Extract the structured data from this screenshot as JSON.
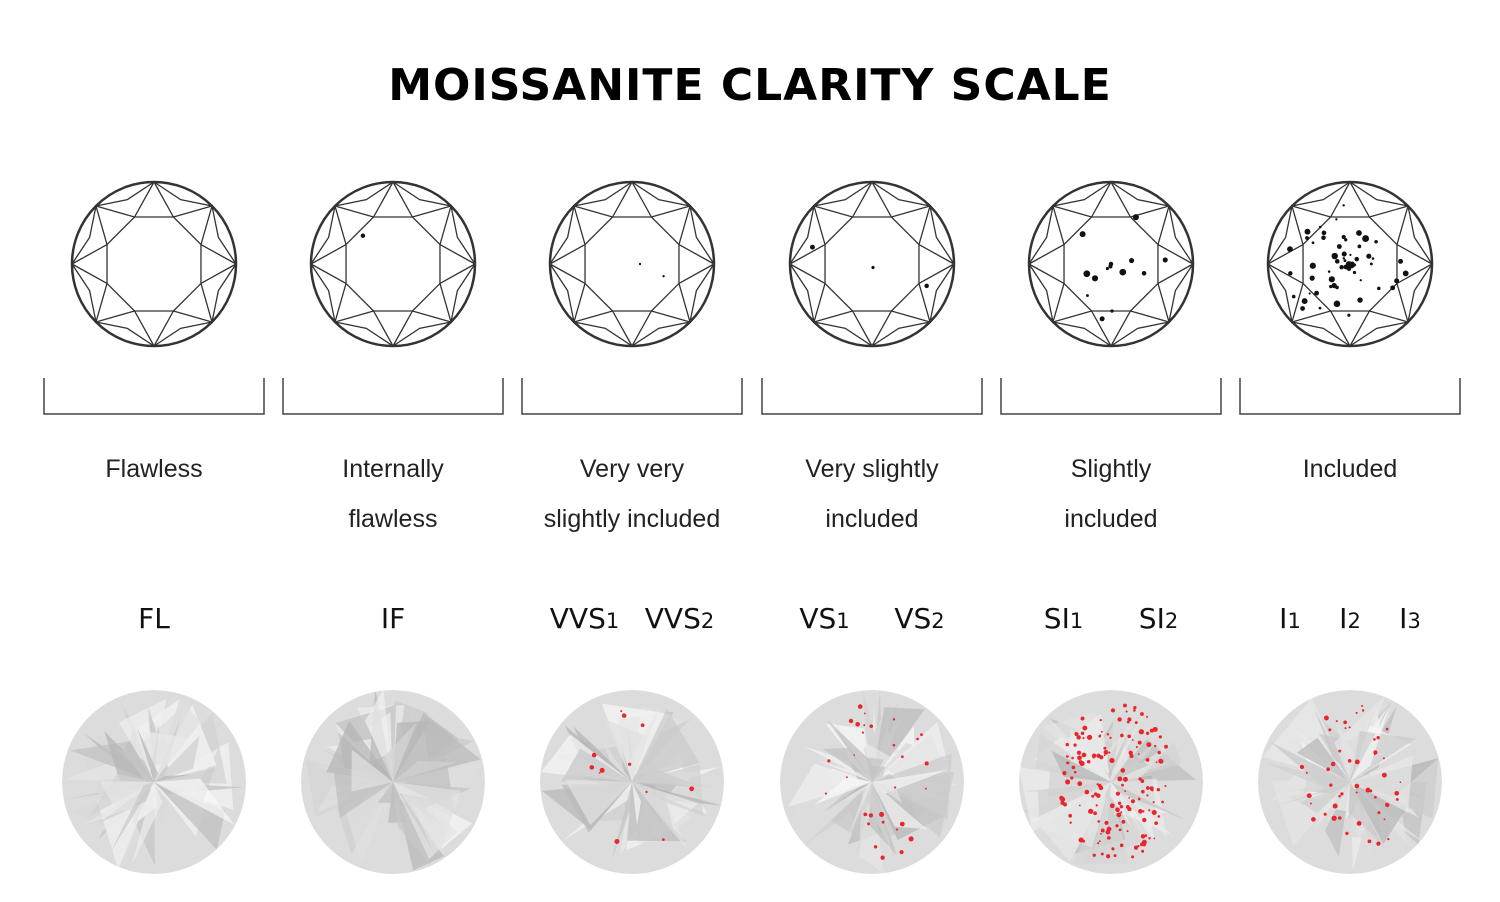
{
  "header": {
    "title": "MOISSANITE CLARITY SCALE"
  },
  "columns": [
    {
      "description": [
        "Flawless"
      ],
      "grades": [
        {
          "code": "FL"
        }
      ]
    },
    {
      "description": [
        "Internally",
        "flawless"
      ],
      "grades": [
        {
          "code": "IF"
        }
      ]
    },
    {
      "description": [
        "Very very",
        "slightly included"
      ],
      "grades": [
        {
          "code": "VVS",
          "sub": "1"
        },
        {
          "code": "VVS",
          "sub": "2"
        }
      ]
    },
    {
      "description": [
        "Very slightly",
        "included"
      ],
      "grades": [
        {
          "code": "VS",
          "sub": "1"
        },
        {
          "code": "VS",
          "sub": "2"
        }
      ]
    },
    {
      "description": [
        "Slightly",
        "included"
      ],
      "grades": [
        {
          "code": "SI",
          "sub": "1"
        },
        {
          "code": "SI",
          "sub": "2"
        }
      ]
    },
    {
      "description": [
        "Included"
      ],
      "grades": [
        {
          "code": "I",
          "sub": "1"
        },
        {
          "code": "I",
          "sub": "2"
        },
        {
          "code": "I",
          "sub": "3"
        }
      ]
    }
  ]
}
